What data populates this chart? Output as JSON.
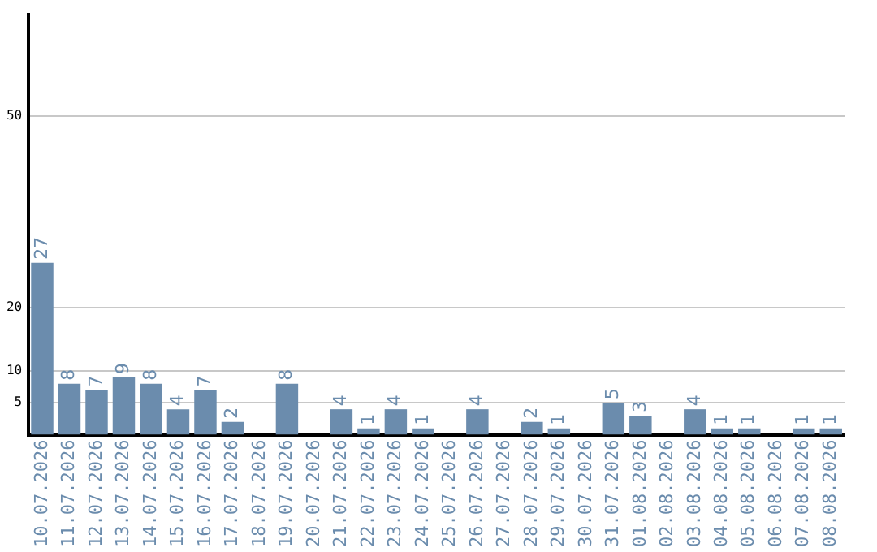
{
  "chart_data": {
    "type": "bar",
    "categories": [
      "10.07.2026",
      "11.07.2026",
      "12.07.2026",
      "13.07.2026",
      "14.07.2026",
      "15.07.2026",
      "16.07.2026",
      "17.07.2026",
      "18.07.2026",
      "19.07.2026",
      "20.07.2026",
      "21.07.2026",
      "22.07.2026",
      "23.07.2026",
      "24.07.2026",
      "25.07.2026",
      "26.07.2026",
      "27.07.2026",
      "28.07.2026",
      "29.07.2026",
      "30.07.2026",
      "31.07.2026",
      "01.08.2026",
      "02.08.2026",
      "03.08.2026",
      "04.08.2026",
      "05.08.2026",
      "06.08.2026",
      "07.08.2026",
      "08.08.2026"
    ],
    "values": [
      27,
      8,
      7,
      9,
      8,
      4,
      7,
      2,
      null,
      8,
      null,
      4,
      1,
      4,
      1,
      null,
      4,
      null,
      2,
      1,
      null,
      5,
      3,
      null,
      4,
      1,
      1,
      null,
      1,
      1
    ],
    "color": "#6b8cad",
    "ylim": [
      0,
      66
    ],
    "yticks": [
      5,
      10,
      20,
      50
    ],
    "grid": "y",
    "legend": false,
    "data_labels": true
  }
}
